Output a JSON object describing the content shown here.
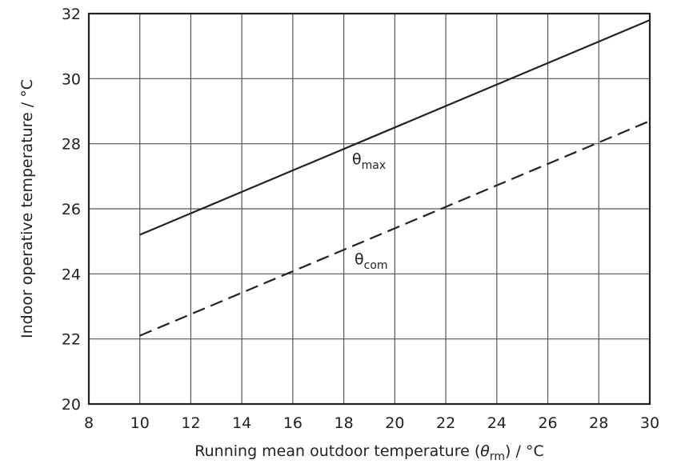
{
  "chart_data": {
    "type": "line",
    "xlabel": "Running mean outdoor temperature (θrm) / °C",
    "xlabel_parts": {
      "pre": "Running mean outdoor temperature (",
      "symbol": "θ",
      "subscript": "rm",
      "post": ") / °C"
    },
    "ylabel": "Indoor operative temperature / °C",
    "xlim": [
      8,
      30
    ],
    "ylim": [
      20,
      32
    ],
    "xticks": [
      8,
      10,
      12,
      14,
      16,
      18,
      20,
      22,
      24,
      26,
      28,
      30
    ],
    "yticks": [
      20,
      22,
      24,
      26,
      28,
      30,
      32
    ],
    "grid": true,
    "series": [
      {
        "key": "max",
        "name": "θmax",
        "symbol": "θ",
        "subscript": "max",
        "style": "solid",
        "x": [
          10,
          30
        ],
        "y": [
          25.2,
          31.8
        ]
      },
      {
        "key": "com",
        "name": "θcom",
        "symbol": "θ",
        "subscript": "com",
        "style": "dashed",
        "x": [
          10,
          30
        ],
        "y": [
          22.1,
          28.7
        ]
      }
    ],
    "colors": {
      "line": "#222222",
      "grid": "#555555",
      "frame": "#222222"
    }
  }
}
